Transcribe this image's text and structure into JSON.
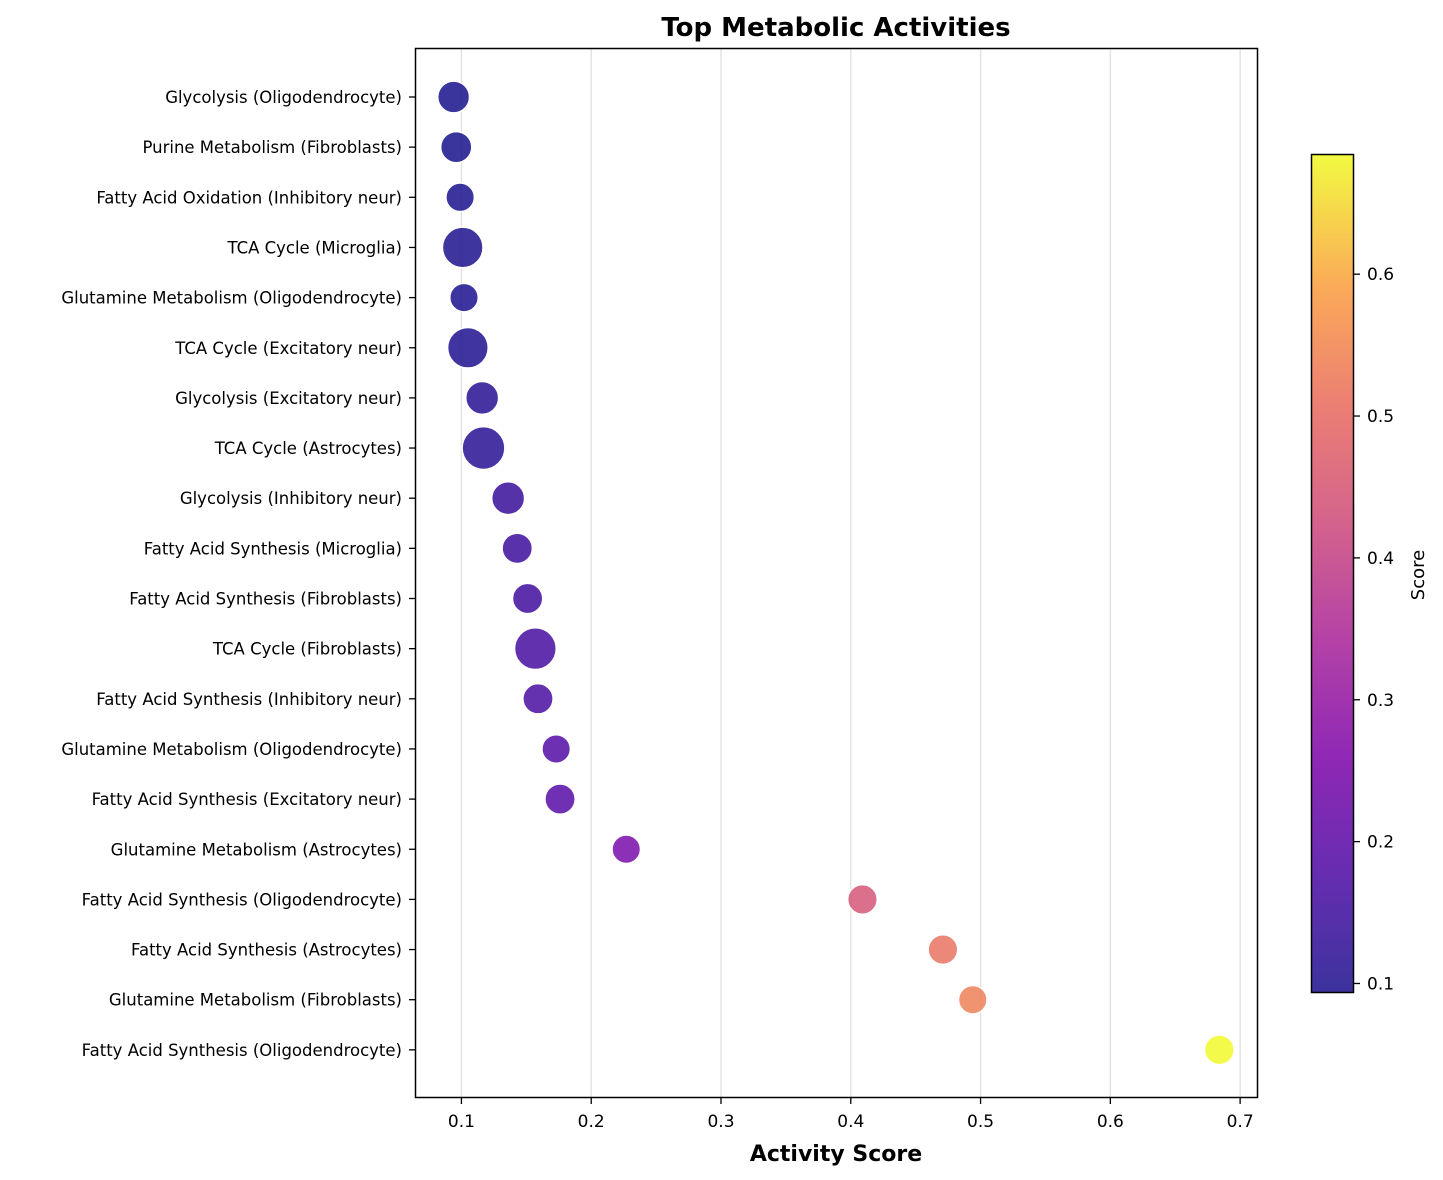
{
  "chart_data": {
    "type": "scatter",
    "title": "Top Metabolic Activities",
    "xlabel": "Activity Score",
    "ylabel": "",
    "xlim": [
      0.065,
      0.713
    ],
    "xticks": [
      "0.1",
      "0.2",
      "0.3",
      "0.4",
      "0.5",
      "0.6",
      "0.7"
    ],
    "xtick_values": [
      0.1,
      0.2,
      0.3,
      0.4,
      0.5,
      0.6,
      0.7
    ],
    "grid": "x-major",
    "colormap": "plasma",
    "colorbar": {
      "label": "Score",
      "range": [
        0.094,
        0.684
      ],
      "ticks": [
        "0.1",
        "0.2",
        "0.3",
        "0.4",
        "0.5",
        "0.6"
      ],
      "tick_values": [
        0.1,
        0.2,
        0.3,
        0.4,
        0.5,
        0.6
      ]
    },
    "categories": [
      "Glycolysis (Oligodendrocyte)",
      "Purine Metabolism (Fibroblasts)",
      "Fatty Acid Oxidation (Inhibitory neur)",
      "TCA Cycle (Microglia)",
      "Glutamine Metabolism (Oligodendrocyte)",
      "TCA Cycle (Excitatory neur)",
      "Glycolysis (Excitatory neur)",
      "TCA Cycle (Astrocytes)",
      "Glycolysis (Inhibitory neur)",
      "Fatty Acid Synthesis (Microglia)",
      "Fatty Acid Synthesis (Fibroblasts)",
      "TCA Cycle (Fibroblasts)",
      "Fatty Acid Synthesis (Inhibitory neur)",
      "Glutamine Metabolism (Oligodendrocyte)",
      "Fatty Acid Synthesis (Excitatory neur)",
      "Glutamine Metabolism (Astrocytes)",
      "Fatty Acid Synthesis (Oligodendrocyte)",
      "Fatty Acid Synthesis (Astrocytes)",
      "Glutamine Metabolism (Fibroblasts)",
      "Fatty Acid Synthesis (Oligodendrocyte)"
    ],
    "values": [
      0.094,
      0.096,
      0.099,
      0.101,
      0.102,
      0.105,
      0.116,
      0.117,
      0.136,
      0.143,
      0.151,
      0.157,
      0.159,
      0.173,
      0.176,
      0.227,
      0.409,
      0.471,
      0.494,
      0.684
    ],
    "size_weights": [
      0.45,
      0.42,
      0.3,
      0.85,
      0.3,
      0.85,
      0.5,
      0.95,
      0.5,
      0.38,
      0.38,
      0.9,
      0.38,
      0.3,
      0.38,
      0.3,
      0.35,
      0.35,
      0.3,
      0.35
    ]
  }
}
